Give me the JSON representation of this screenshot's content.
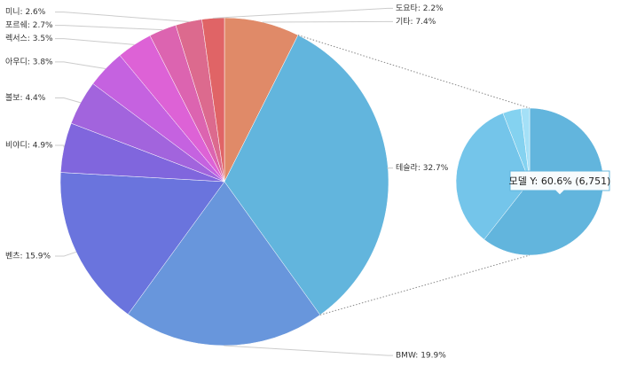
{
  "chart_data": [
    {
      "type": "pie",
      "categories": [
        "기타",
        "테슬라",
        "BMW",
        "벤츠",
        "비야디",
        "볼보",
        "아우디",
        "렉서스",
        "포르쉐",
        "미니",
        "도요타"
      ],
      "values": [
        7.4,
        32.7,
        19.9,
        15.9,
        4.9,
        4.4,
        3.8,
        3.5,
        2.7,
        2.6,
        2.2
      ],
      "value_labels": [
        "기타: 7.4%",
        "테슬라: 32.7%",
        "BMW: 19.9%",
        "벤츠: 15.9%",
        "비야디: 4.9%",
        "볼보: 4.4%",
        "아우디: 3.8%",
        "렉서스: 3.5%",
        "포르쉐: 2.7%",
        "미니: 2.6%",
        "도요타: 2.2%"
      ],
      "colors": [
        "#e08a68",
        "#62b5dd",
        "#6896dc",
        "#6a74dd",
        "#8066dd",
        "#a264dd",
        "#c562e0",
        "#dd62d6",
        "#dc64b0",
        "#dc6a8e",
        "#e06466"
      ]
    },
    {
      "type": "pie",
      "values": [
        60.6,
        33.5,
        4.0,
        1.9
      ],
      "colors": [
        "#62b5dd",
        "#74c5ea",
        "#84d2f0",
        "#a4e0f7"
      ],
      "annotation": "모델 Y: 60.6% (6,751)"
    }
  ]
}
